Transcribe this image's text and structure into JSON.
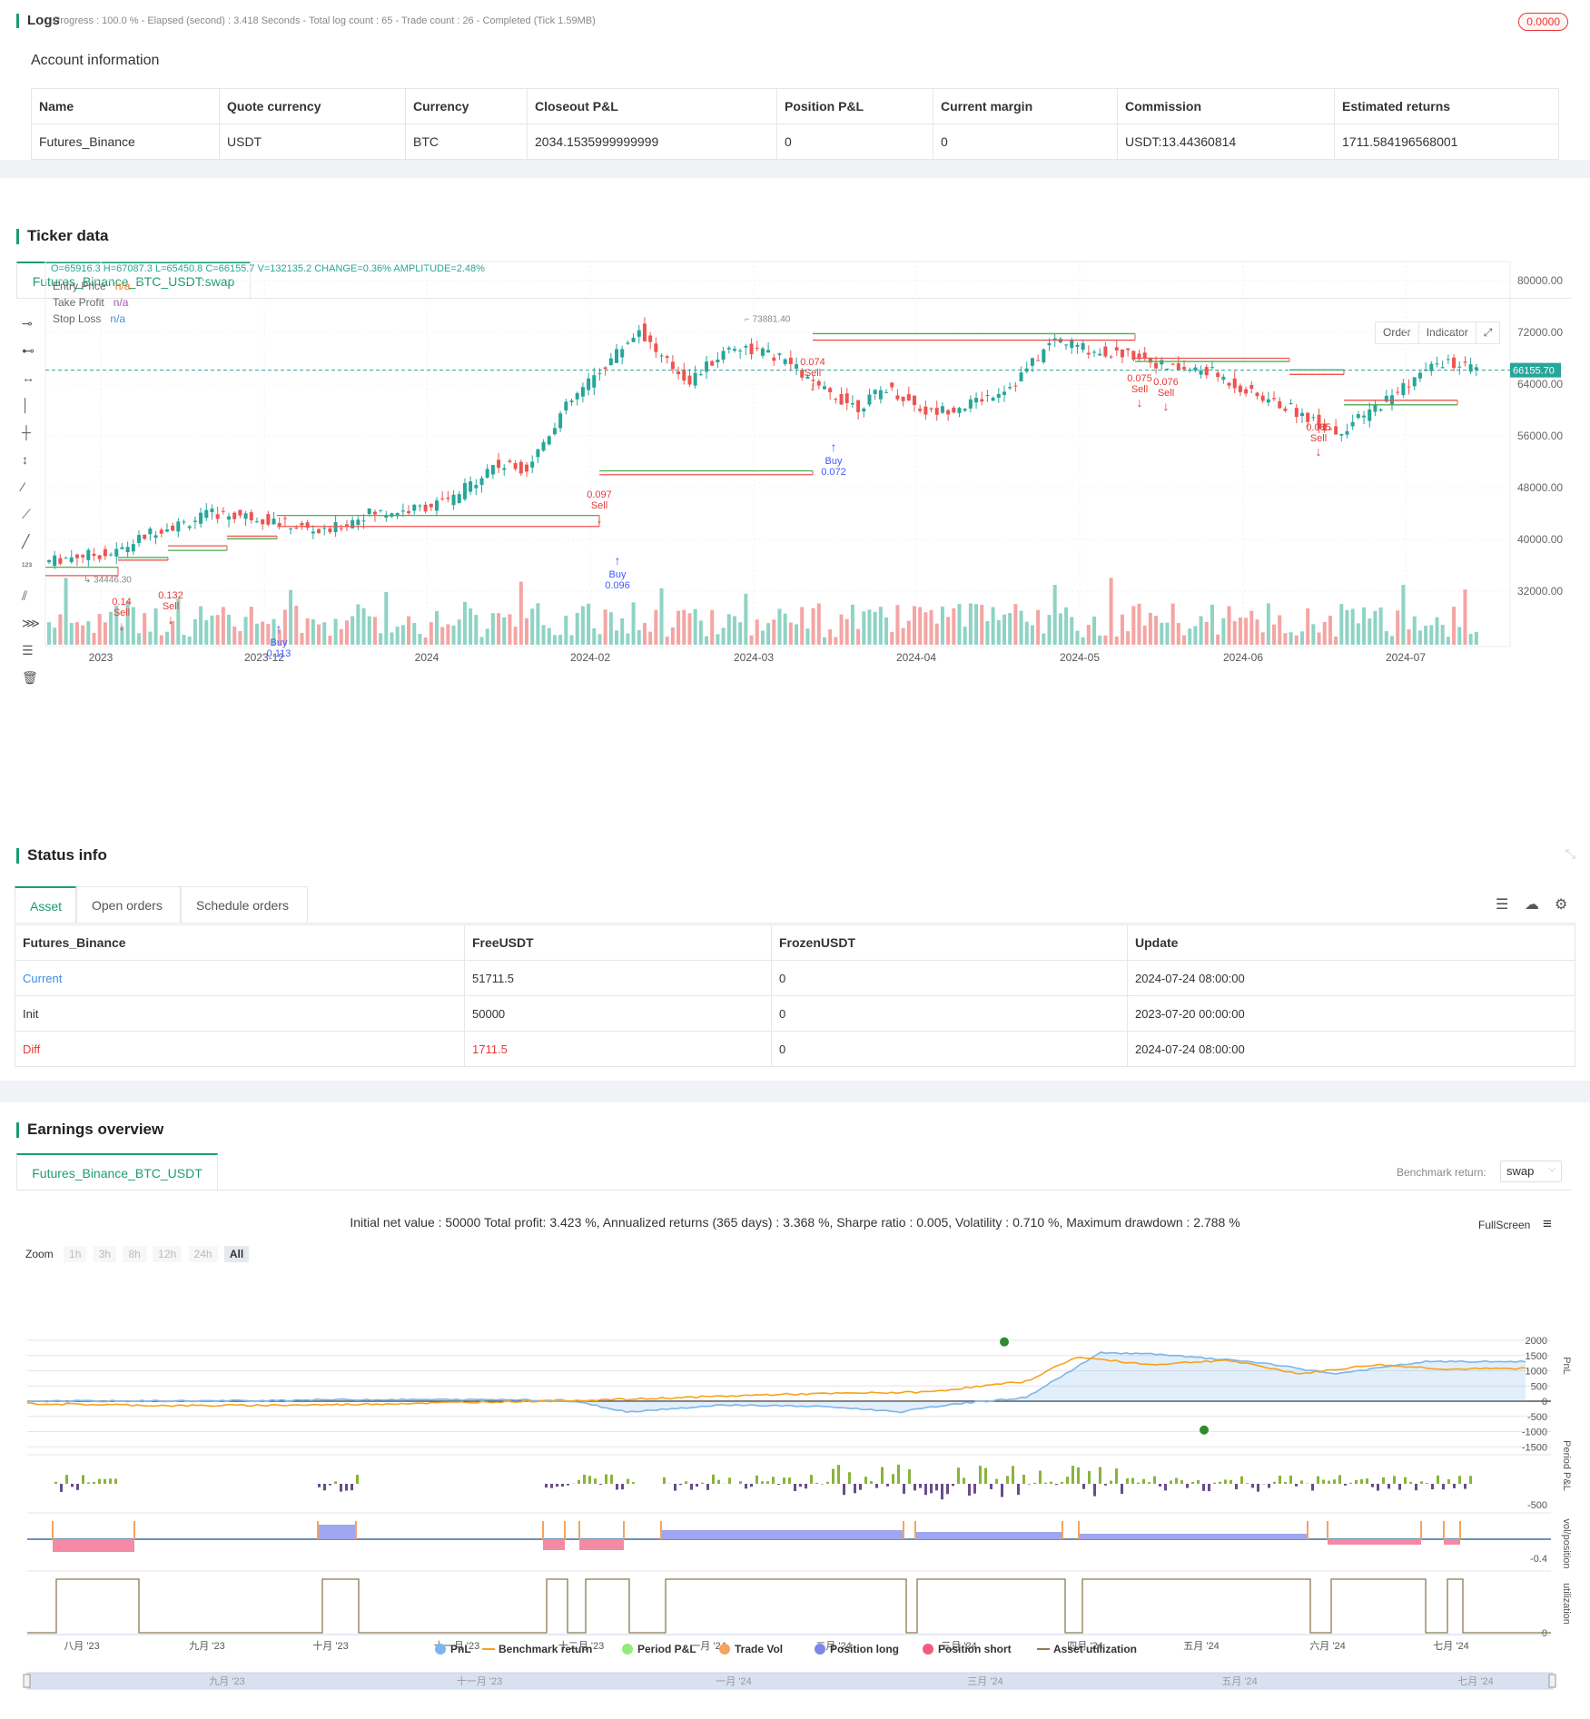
{
  "logs": {
    "title": "Logs",
    "progress_text": "Progress : 100.0 % - Elapsed (second) : 3.418  Seconds - Total log count : 65 - Trade count : 26 - Completed (Tick 1.59MB)",
    "badge": "0.0000"
  },
  "account": {
    "title": "Account information",
    "headers": [
      "Name",
      "Quote currency",
      "Currency",
      "Closeout P&L",
      "Position P&L",
      "Current margin",
      "Commission",
      "Estimated returns"
    ],
    "row": [
      "Futures_Binance",
      "USDT",
      "BTC",
      "2034.1535999999999",
      "0",
      "0",
      "USDT:13.44360814",
      "1711.584196568001"
    ]
  },
  "ticker": {
    "title": "Ticker data",
    "tab": "Futures_Binance_BTC_USDT:swap",
    "ohlc": "O=65916.3 H=67087.3 L=65450.8 C=66155.7 V=132135.2 CHANGE=0.36% AMPLITUDE=2.48%",
    "legend": [
      {
        "label": "Entry Price",
        "value": "n/a",
        "color": "#e67e22"
      },
      {
        "label": "Take Profit",
        "value": "n/a",
        "color": "#9b59b6"
      },
      {
        "label": "Stop Loss",
        "value": "n/a",
        "color": "#3498db"
      }
    ],
    "buttons": {
      "order": "Order",
      "indicator": "Indicator"
    },
    "price_axis": [
      "80000.00",
      "72000.00",
      "64000.00",
      "56000.00",
      "48000.00",
      "40000.00",
      "32000.00"
    ],
    "current_price": "66155.70",
    "high_label": "73881.40",
    "low_label": "34446.30",
    "x_axis": [
      "2023",
      "2023-12",
      "2024",
      "2024-02",
      "2024-03",
      "2024-04",
      "2024-05",
      "2024-06",
      "2024-07"
    ],
    "trades": [
      {
        "kind": "Sell",
        "qty": "0.14"
      },
      {
        "kind": "Sell",
        "qty": "0.132"
      },
      {
        "kind": "Buy",
        "qty": "0.113"
      },
      {
        "kind": "Sell",
        "qty": "0.097"
      },
      {
        "kind": "Buy",
        "qty": "0.096"
      },
      {
        "kind": "Sell",
        "qty": "0.074"
      },
      {
        "kind": "Buy",
        "qty": "0.072"
      },
      {
        "kind": "Sell",
        "qty": "0.075"
      },
      {
        "kind": "Sell",
        "qty": "0.076"
      },
      {
        "kind": "Sell",
        "qty": "0.085"
      }
    ],
    "colors": {
      "up": "#26a69a",
      "down": "#ef5350",
      "entry": "#ef5350",
      "tp": "#4caf50"
    }
  },
  "status": {
    "title": "Status info",
    "tabs": [
      "Asset",
      "Open orders",
      "Schedule orders"
    ],
    "headers": [
      "Futures_Binance",
      "FreeUSDT",
      "FrozenUSDT",
      "Update"
    ],
    "rows": [
      [
        "Current",
        "51711.5",
        "0",
        "2024-07-24 08:00:00"
      ],
      [
        "Init",
        "50000",
        "0",
        "2023-07-20 00:00:00"
      ],
      [
        "Diff",
        "1711.5",
        "0",
        "2024-07-24 08:00:00"
      ]
    ]
  },
  "earnings": {
    "title": "Earnings overview",
    "tab": "Futures_Binance_BTC_USDT",
    "benchmark_label": "Benchmark return:",
    "benchmark_value": "swap",
    "summary": "Initial net value : 50000 Total profit: 3.423 %, Annualized returns (365 days) : 3.368 %, Sharpe ratio : 0.005, Volatility : 0.710 %, Maximum drawdown : 2.788 %",
    "fullscreen": "FullScreen",
    "zoom_label": "Zoom",
    "zoom_options": [
      "1h",
      "3h",
      "8h",
      "12h",
      "24h",
      "All"
    ],
    "pnl_axis": [
      "2000",
      "1500",
      "1000",
      "500",
      "0",
      "-500",
      "-1000",
      "-1500"
    ],
    "period_axis": [
      "-500"
    ],
    "pos_axis": [
      "-0.4"
    ],
    "util_axis": [
      "0"
    ],
    "axis_titles": [
      "PnL",
      "Period P&L",
      "vol/position",
      "utilization"
    ],
    "x_axis": [
      "八月 '23",
      "九月 '23",
      "十月 '23",
      "十一月 '23",
      "十二月 '23",
      "一月 '24",
      "二月 '24",
      "三月 '24",
      "四月 '24",
      "五月 '24",
      "六月 '24",
      "七月 '24"
    ],
    "nav_axis": [
      "九月 '23",
      "十一月 '23",
      "一月 '24",
      "三月 '24",
      "五月 '24",
      "七月 '24"
    ],
    "legend": [
      {
        "label": "PnL",
        "color": "#7cb5ec"
      },
      {
        "label": "Benchmark return",
        "color": "#f7a21b"
      },
      {
        "label": "Period P&L",
        "color": "#90ed7d"
      },
      {
        "label": "Trade Vol",
        "color": "#f7a35c"
      },
      {
        "label": "Position long",
        "color": "#8085e9"
      },
      {
        "label": "Position short",
        "color": "#f15c80"
      },
      {
        "label": "Asset utilization",
        "color": "#8d7b4e"
      }
    ]
  }
}
